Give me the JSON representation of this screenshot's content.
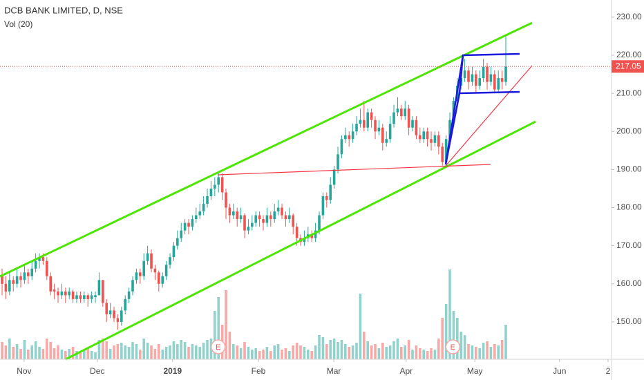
{
  "chart_data": {
    "type": "candlestick",
    "title": "DCB BANK LIMITED, D, NSE",
    "subtitle": "Vol (20)",
    "up_color": "#26a69a",
    "down_color": "#ef5350",
    "ylim": [
      140.2,
      234.5
    ],
    "yticks": [
      {
        "value": 150,
        "label": "150.00"
      },
      {
        "value": 160,
        "label": "160.00"
      },
      {
        "value": 170,
        "label": "170.00"
      },
      {
        "value": 180,
        "label": "180.00"
      },
      {
        "value": 190,
        "label": "190.00"
      },
      {
        "value": 200,
        "label": "200.00"
      },
      {
        "value": 210,
        "label": "210.00"
      },
      {
        "value": 220,
        "label": "220.00"
      },
      {
        "value": 230,
        "label": "230.00"
      }
    ],
    "xlim": [
      -0.56,
      163.33
    ],
    "xticks": [
      {
        "value": 5.9,
        "label": "Nov"
      },
      {
        "value": 25.5,
        "label": "Dec"
      },
      {
        "value": 45.7,
        "label": "2019"
      },
      {
        "value": 68.7,
        "label": "Feb"
      },
      {
        "value": 88.9,
        "label": "Mar"
      },
      {
        "value": 108.3,
        "label": "Apr"
      },
      {
        "value": 126.7,
        "label": "May"
      },
      {
        "value": 149.4,
        "label": "Jun"
      },
      {
        "value": 162.4,
        "label": "2"
      }
    ],
    "vlim": [
      0,
      200
    ],
    "last_price": 217.05,
    "events": [
      {
        "x": 57.9,
        "label": "E"
      },
      {
        "x": 120.8,
        "label": "E"
      }
    ],
    "candles": [
      [
        162,
        164,
        157,
        160,
        25
      ],
      [
        160,
        162,
        156,
        158,
        20
      ],
      [
        158,
        163,
        157,
        161,
        30
      ],
      [
        161,
        162,
        158,
        160,
        18
      ],
      [
        160,
        164,
        159,
        162,
        22
      ],
      [
        162,
        163,
        159,
        161,
        15
      ],
      [
        161,
        165,
        160,
        163,
        28
      ],
      [
        163,
        164,
        160,
        162,
        14
      ],
      [
        162,
        166,
        161,
        164,
        20
      ],
      [
        164,
        168,
        163,
        166,
        26
      ],
      [
        166,
        168,
        164,
        167,
        18
      ],
      [
        167,
        168,
        165,
        166,
        15
      ],
      [
        166,
        167,
        161,
        162,
        30
      ],
      [
        162,
        163,
        157,
        158,
        25
      ],
      [
        158.5,
        160,
        156,
        158,
        16
      ],
      [
        158,
        159,
        155,
        157,
        20
      ],
      [
        157,
        160,
        156,
        158,
        14
      ],
      [
        158,
        159,
        155,
        157,
        12
      ],
      [
        157,
        159,
        156,
        158,
        15
      ],
      [
        158,
        158.5,
        155,
        156,
        18
      ],
      [
        156,
        158,
        155,
        157,
        12
      ],
      [
        157,
        158,
        155,
        156,
        10
      ],
      [
        156,
        158,
        155,
        157,
        14
      ],
      [
        157,
        157.5,
        154,
        156,
        16
      ],
      [
        156,
        158,
        155,
        157,
        12
      ],
      [
        156.5,
        158,
        155,
        157,
        10
      ],
      [
        157,
        163,
        157,
        161,
        28
      ],
      [
        161,
        161,
        154,
        155,
        30
      ],
      [
        155,
        156,
        150,
        152,
        26
      ],
      [
        152,
        155,
        151,
        153,
        15
      ],
      [
        153,
        154,
        150,
        151,
        20
      ],
      [
        151,
        152,
        148,
        150,
        22
      ],
      [
        150,
        154,
        149,
        153,
        24
      ],
      [
        153,
        157,
        152,
        156,
        20
      ],
      [
        156,
        159,
        155,
        158,
        18
      ],
      [
        158,
        162,
        157,
        161,
        25
      ],
      [
        161,
        164,
        160,
        163,
        22
      ],
      [
        163,
        164,
        160,
        162,
        14
      ],
      [
        162,
        168,
        161,
        166,
        30
      ],
      [
        166,
        170,
        165,
        168,
        24
      ],
      [
        168,
        169,
        163,
        164,
        20
      ],
      [
        164,
        165,
        161,
        163,
        15
      ],
      [
        163,
        163.5,
        158,
        160,
        22
      ],
      [
        160,
        163,
        159,
        162,
        14
      ],
      [
        162,
        166,
        161,
        165,
        18
      ],
      [
        165,
        168,
        164,
        167,
        20
      ],
      [
        167,
        171,
        166,
        170,
        26
      ],
      [
        170,
        174,
        169,
        172,
        22
      ],
      [
        172,
        176,
        171,
        174,
        28
      ],
      [
        174,
        177,
        173,
        176,
        25
      ],
      [
        176,
        177,
        173,
        175,
        18
      ],
      [
        175,
        178,
        174,
        177,
        22
      ],
      [
        177,
        180,
        176,
        178,
        20
      ],
      [
        178,
        181,
        177,
        179,
        18
      ],
      [
        179,
        183,
        178,
        181,
        24
      ],
      [
        181,
        185,
        180,
        183,
        28
      ],
      [
        183,
        187,
        182,
        185,
        30
      ],
      [
        185,
        188,
        183,
        186,
        70
      ],
      [
        186,
        189,
        184,
        188,
        90
      ],
      [
        188,
        189,
        182,
        184,
        50
      ],
      [
        184,
        185,
        177,
        180,
        100
      ],
      [
        180,
        181,
        176,
        178,
        40
      ],
      [
        178,
        181,
        177,
        179,
        22
      ],
      [
        179,
        180,
        175,
        177,
        20
      ],
      [
        177,
        180,
        176,
        178,
        16
      ],
      [
        178,
        178.5,
        172,
        174,
        25
      ],
      [
        174,
        177,
        173,
        175,
        18
      ],
      [
        175,
        178,
        174,
        176,
        14
      ],
      [
        176,
        179,
        175,
        178,
        16
      ],
      [
        178,
        179,
        175,
        177,
        12
      ],
      [
        177,
        178,
        174,
        176,
        14
      ],
      [
        176,
        180,
        175,
        178,
        18
      ],
      [
        178,
        179,
        175,
        177,
        12
      ],
      [
        177,
        181,
        176,
        179,
        20
      ],
      [
        179,
        182,
        178,
        180,
        22
      ],
      [
        180,
        181,
        177,
        178,
        14
      ],
      [
        178,
        179,
        175,
        177,
        16
      ],
      [
        177,
        180,
        176,
        178,
        12
      ],
      [
        178,
        178.5,
        173,
        175,
        20
      ],
      [
        175,
        176,
        170,
        172,
        24
      ],
      [
        172,
        173,
        170,
        171,
        20
      ],
      [
        171,
        174,
        170,
        172,
        18
      ],
      [
        172,
        175,
        171,
        173,
        14
      ],
      [
        173,
        174,
        171,
        172,
        12
      ],
      [
        172,
        176,
        171,
        174,
        20
      ],
      [
        174,
        179,
        173,
        178,
        35
      ],
      [
        178,
        184,
        177,
        183,
        32
      ],
      [
        183,
        184,
        180,
        182,
        22
      ],
      [
        182,
        188,
        181,
        186,
        28
      ],
      [
        186,
        191,
        185,
        190,
        30
      ],
      [
        190,
        196,
        189,
        194,
        25
      ],
      [
        194,
        199,
        193,
        198,
        28
      ],
      [
        198,
        201,
        197,
        199,
        22
      ],
      [
        199,
        200,
        196,
        198,
        18
      ],
      [
        198,
        202,
        197,
        200,
        20
      ],
      [
        200,
        204,
        199,
        202,
        24
      ],
      [
        202,
        206,
        201,
        203,
        95
      ],
      [
        203,
        208,
        200,
        201,
        40
      ],
      [
        201,
        206,
        200,
        205,
        26
      ],
      [
        205,
        206,
        201,
        203,
        20
      ],
      [
        203,
        204,
        198,
        200,
        22
      ],
      [
        200,
        203,
        199,
        201,
        16
      ],
      [
        201,
        202,
        195,
        197,
        24
      ],
      [
        197,
        200,
        196,
        198,
        18
      ],
      [
        198,
        204,
        197,
        202,
        20
      ],
      [
        202,
        207,
        201,
        205,
        26
      ],
      [
        205,
        209,
        204,
        206,
        30
      ],
      [
        206,
        207,
        203,
        204,
        18
      ],
      [
        204,
        208,
        203,
        206,
        20
      ],
      [
        206,
        207,
        199,
        201,
        28
      ],
      [
        201,
        204,
        200,
        203,
        14
      ],
      [
        203,
        204,
        198,
        199,
        20
      ],
      [
        199,
        201,
        197,
        198,
        16
      ],
      [
        198,
        201,
        197,
        200,
        14
      ],
      [
        200,
        201,
        196,
        198,
        12
      ],
      [
        198,
        200,
        195,
        197,
        16
      ],
      [
        197,
        200,
        196,
        199,
        14
      ],
      [
        199,
        200,
        194,
        196,
        30
      ],
      [
        196,
        197,
        191,
        192,
        60
      ],
      [
        192,
        199,
        191,
        198,
        80
      ],
      [
        198,
        205,
        197,
        203,
        130
      ],
      [
        203,
        209,
        202,
        208,
        70
      ],
      [
        208,
        214,
        207,
        212,
        60
      ],
      [
        212,
        216,
        211,
        214,
        40
      ],
      [
        214,
        219,
        213,
        216,
        35
      ],
      [
        216,
        217,
        211,
        213,
        22
      ],
      [
        213,
        217,
        212,
        215,
        20
      ],
      [
        215,
        216,
        210,
        212,
        18
      ],
      [
        212,
        216,
        211,
        214,
        16
      ],
      [
        214,
        219,
        213,
        217,
        24
      ],
      [
        217,
        218,
        211,
        213,
        26
      ],
      [
        213,
        217,
        212,
        215,
        18
      ],
      [
        215,
        216,
        210,
        211,
        22
      ],
      [
        211,
        216,
        210,
        214,
        20
      ],
      [
        214,
        216,
        211,
        213,
        28
      ],
      [
        213,
        225,
        212,
        217.05,
        50
      ]
    ]
  }
}
